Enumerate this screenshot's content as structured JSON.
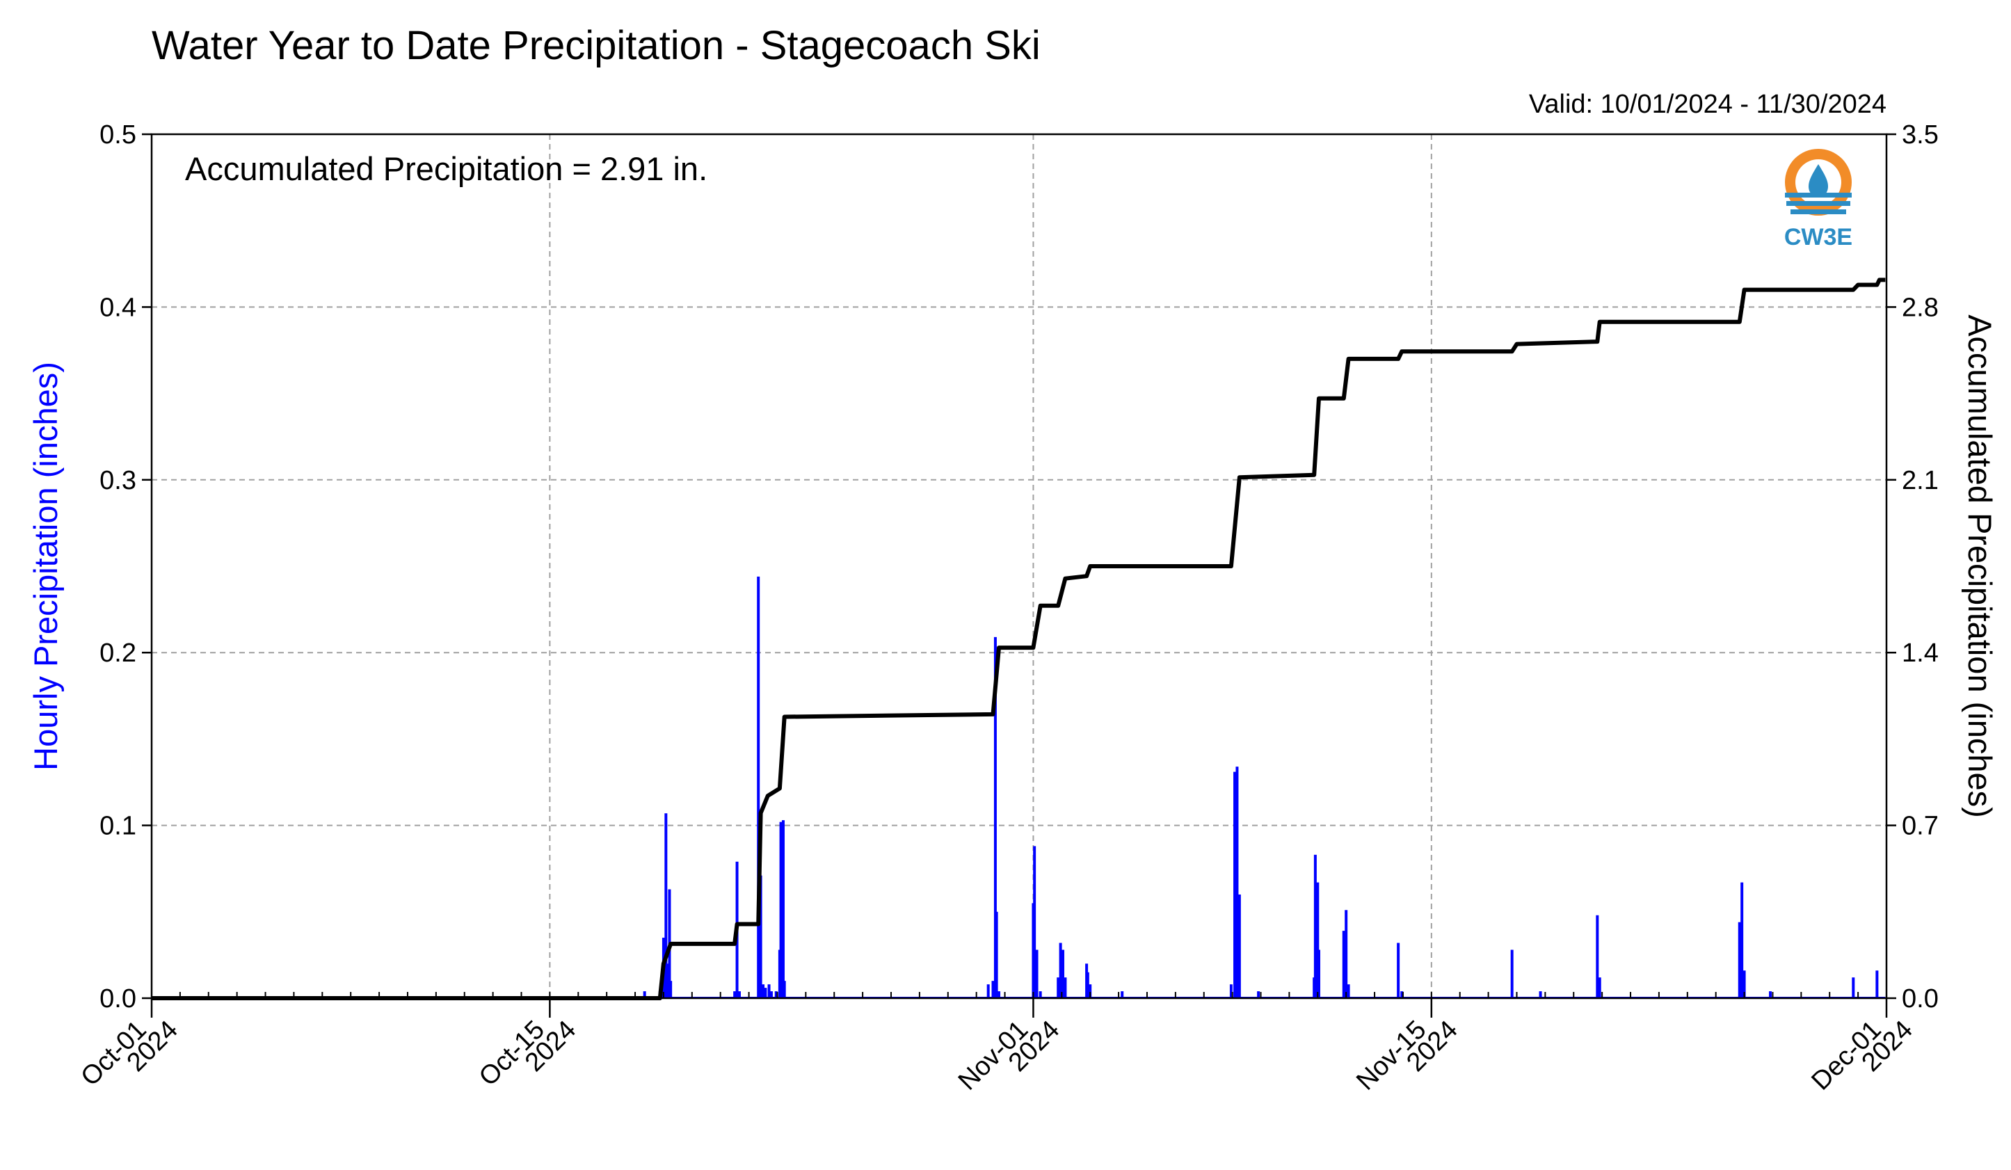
{
  "chart_data": {
    "type": "bar+line",
    "title": "Water Year to Date Precipitation - Stagecoach Ski",
    "valid_text": "Valid: 10/01/2024 - 11/30/2024",
    "annotation": "Accumulated Precipitation = 2.91 in.",
    "logo_text": "CW3E",
    "ylabel_left": "Hourly Precipitation (inches)",
    "ylabel_right": "Accumulated Precipitation (inches)",
    "colors": {
      "bars": "#0000ff",
      "line": "#000000",
      "ylabel_left": "#0000ff",
      "grid": "#a0a0a0",
      "logo_orange": "#f28c28",
      "logo_blue": "#2b8cc4",
      "logo_text": "#2b8cc4"
    },
    "xlim": [
      "2024-10-01",
      "2024-12-01"
    ],
    "ylim_left": [
      0,
      0.5
    ],
    "ylim_right": [
      0,
      3.5
    ],
    "grid": true,
    "x_ticks": [
      {
        "date": "2024-10-01",
        "line1": "Oct-01",
        "line2": "2024"
      },
      {
        "date": "2024-10-15",
        "line1": "Oct-15",
        "line2": "2024"
      },
      {
        "date": "2024-11-01",
        "line1": "Nov-01",
        "line2": "2024"
      },
      {
        "date": "2024-11-15",
        "line1": "Nov-15",
        "line2": "2024"
      },
      {
        "date": "2024-12-01",
        "line1": "Dec-01",
        "line2": "2024"
      }
    ],
    "y_ticks_left": [
      "0.0",
      "0.1",
      "0.2",
      "0.3",
      "0.4",
      "0.5"
    ],
    "y_ticks_right": [
      "0.0",
      "0.7",
      "1.4",
      "2.1",
      "2.8",
      "3.5"
    ],
    "series": [
      {
        "name": "Hourly Precipitation (inches)",
        "type": "bar",
        "points": [
          [
            "2024-10-18T08:00",
            0.004
          ],
          [
            "2024-10-18T21:00",
            0.004
          ],
          [
            "2024-10-19T00:00",
            0.035
          ],
          [
            "2024-10-19T02:00",
            0.107
          ],
          [
            "2024-10-19T04:00",
            0.02
          ],
          [
            "2024-10-19T05:00",
            0.063
          ],
          [
            "2024-10-19T06:00",
            0.01
          ],
          [
            "2024-10-21T12:00",
            0.004
          ],
          [
            "2024-10-21T14:00",
            0.079
          ],
          [
            "2024-10-21T16:00",
            0.004
          ],
          [
            "2024-10-22T08:00",
            0.244
          ],
          [
            "2024-10-22T09:00",
            0.03
          ],
          [
            "2024-10-22T10:00",
            0.071
          ],
          [
            "2024-10-22T12:00",
            0.008
          ],
          [
            "2024-10-22T14:00",
            0.006
          ],
          [
            "2024-10-22T17:00",
            0.008
          ],
          [
            "2024-10-22T19:00",
            0.004
          ],
          [
            "2024-10-22T23:00",
            0.004
          ],
          [
            "2024-10-23T02:00",
            0.028
          ],
          [
            "2024-10-23T03:00",
            0.102
          ],
          [
            "2024-10-23T04:00",
            0.045
          ],
          [
            "2024-10-23T05:00",
            0.103
          ],
          [
            "2024-10-23T06:00",
            0.01
          ],
          [
            "2024-10-30T10:00",
            0.008
          ],
          [
            "2024-10-30T14:00",
            0.01
          ],
          [
            "2024-10-30T16:00",
            0.209
          ],
          [
            "2024-10-30T17:00",
            0.05
          ],
          [
            "2024-10-30T19:00",
            0.004
          ],
          [
            "2024-11-01T00:00",
            0.055
          ],
          [
            "2024-11-01T01:00",
            0.088
          ],
          [
            "2024-11-01T03:00",
            0.028
          ],
          [
            "2024-11-01T06:00",
            0.004
          ],
          [
            "2024-11-01T21:00",
            0.012
          ],
          [
            "2024-11-01T23:00",
            0.032
          ],
          [
            "2024-11-02T01:00",
            0.028
          ],
          [
            "2024-11-02T03:00",
            0.012
          ],
          [
            "2024-11-02T21:00",
            0.02
          ],
          [
            "2024-11-02T22:00",
            0.015
          ],
          [
            "2024-11-03T00:00",
            0.008
          ],
          [
            "2024-11-04T03:00",
            0.004
          ],
          [
            "2024-11-07T23:00",
            0.008
          ],
          [
            "2024-11-08T02:00",
            0.131
          ],
          [
            "2024-11-08T04:00",
            0.134
          ],
          [
            "2024-11-08T06:00",
            0.06
          ],
          [
            "2024-11-08T22:00",
            0.004
          ],
          [
            "2024-11-10T21:00",
            0.012
          ],
          [
            "2024-11-10T22:00",
            0.083
          ],
          [
            "2024-11-11T00:00",
            0.067
          ],
          [
            "2024-11-11T01:00",
            0.028
          ],
          [
            "2024-11-11T22:00",
            0.039
          ],
          [
            "2024-11-12T00:00",
            0.051
          ],
          [
            "2024-11-12T02:00",
            0.008
          ],
          [
            "2024-11-13T20:00",
            0.032
          ],
          [
            "2024-11-13T23:00",
            0.004
          ],
          [
            "2024-11-17T20:00",
            0.028
          ],
          [
            "2024-11-18T20:00",
            0.004
          ],
          [
            "2024-11-20T20:00",
            0.048
          ],
          [
            "2024-11-20T22:00",
            0.012
          ],
          [
            "2024-11-25T20:00",
            0.044
          ],
          [
            "2024-11-25T22:00",
            0.067
          ],
          [
            "2024-11-26T00:00",
            0.016
          ],
          [
            "2024-11-26T22:00",
            0.004
          ],
          [
            "2024-11-29T20:00",
            0.012
          ],
          [
            "2024-11-30T16:00",
            0.016
          ]
        ]
      },
      {
        "name": "Accumulated Precipitation (inches)",
        "type": "line",
        "points": [
          [
            "2024-10-01T00:00",
            0.0
          ],
          [
            "2024-10-18T21:00",
            0.0
          ],
          [
            "2024-10-19T00:00",
            0.14
          ],
          [
            "2024-10-19T06:00",
            0.22
          ],
          [
            "2024-10-21T12:00",
            0.22
          ],
          [
            "2024-10-21T14:00",
            0.3
          ],
          [
            "2024-10-22T08:00",
            0.3
          ],
          [
            "2024-10-22T10:00",
            0.75
          ],
          [
            "2024-10-22T16:00",
            0.82
          ],
          [
            "2024-10-23T02:00",
            0.85
          ],
          [
            "2024-10-23T06:00",
            1.14
          ],
          [
            "2024-10-30T14:00",
            1.15
          ],
          [
            "2024-10-30T19:00",
            1.42
          ],
          [
            "2024-11-01T00:00",
            1.42
          ],
          [
            "2024-11-01T06:00",
            1.59
          ],
          [
            "2024-11-01T21:00",
            1.59
          ],
          [
            "2024-11-02T03:00",
            1.7
          ],
          [
            "2024-11-02T21:00",
            1.71
          ],
          [
            "2024-11-03T00:00",
            1.75
          ],
          [
            "2024-11-07T23:00",
            1.75
          ],
          [
            "2024-11-08T06:00",
            2.11
          ],
          [
            "2024-11-10T21:00",
            2.12
          ],
          [
            "2024-11-11T01:00",
            2.43
          ],
          [
            "2024-11-11T22:00",
            2.43
          ],
          [
            "2024-11-12T02:00",
            2.59
          ],
          [
            "2024-11-13T20:00",
            2.59
          ],
          [
            "2024-11-13T23:00",
            2.62
          ],
          [
            "2024-11-17T20:00",
            2.62
          ],
          [
            "2024-11-18T00:00",
            2.65
          ],
          [
            "2024-11-20T20:00",
            2.66
          ],
          [
            "2024-11-20T22:00",
            2.74
          ],
          [
            "2024-11-25T20:00",
            2.74
          ],
          [
            "2024-11-26T00:00",
            2.87
          ],
          [
            "2024-11-29T20:00",
            2.87
          ],
          [
            "2024-11-30T00:00",
            2.89
          ],
          [
            "2024-11-30T16:00",
            2.89
          ],
          [
            "2024-11-30T18:00",
            2.91
          ],
          [
            "2024-11-30T23:00",
            2.91
          ]
        ]
      }
    ]
  }
}
